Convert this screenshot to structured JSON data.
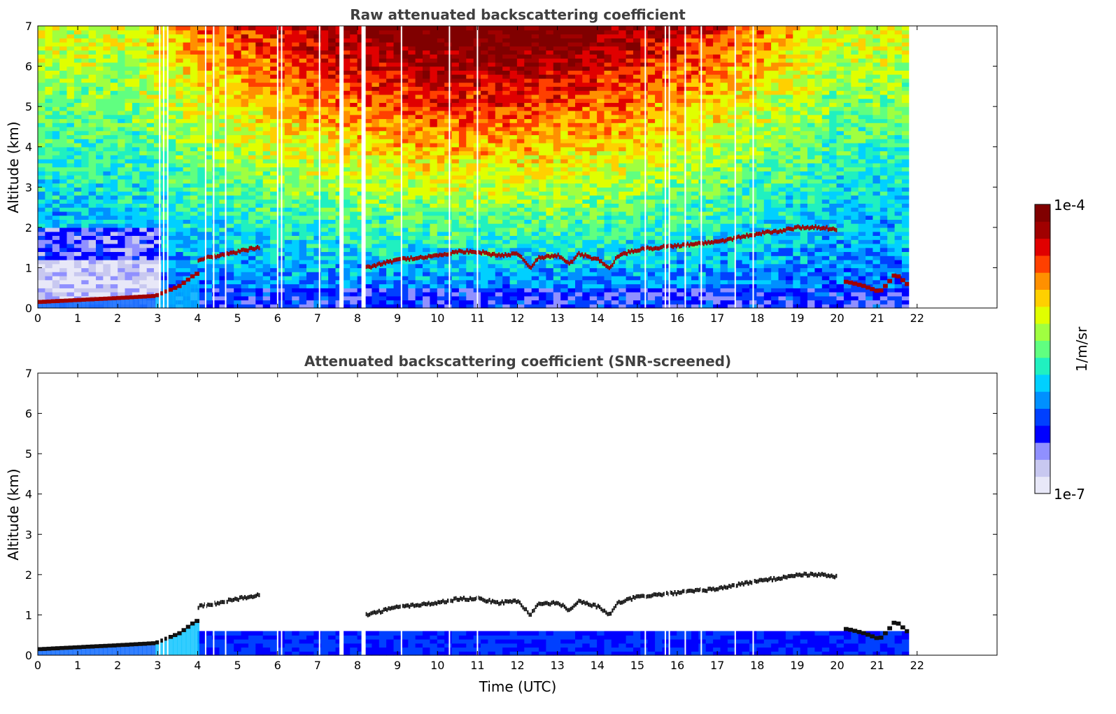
{
  "chart_data": [
    {
      "type": "heatmap",
      "title": "Raw attenuated backscattering coefficient",
      "xlabel": "",
      "ylabel": "Altitude (km)",
      "xlim": [
        0,
        24
      ],
      "ylim": [
        0,
        7
      ],
      "x_ticks": [
        "0",
        "1",
        "2",
        "3",
        "4",
        "5",
        "6",
        "7",
        "8",
        "9",
        "10",
        "11",
        "12",
        "13",
        "14",
        "15",
        "16",
        "17",
        "18",
        "19",
        "20",
        "21",
        "22"
      ],
      "y_ticks": [
        "0",
        "1",
        "2",
        "3",
        "4",
        "5",
        "6",
        "7"
      ],
      "data_time_range": [
        0,
        21.8
      ],
      "gap_times": [
        3.05,
        3.15,
        3.25,
        4.2,
        4.4,
        4.7,
        6.0,
        6.1,
        7.05,
        7.6,
        8.15,
        9.1,
        10.3,
        11.0,
        15.2,
        15.7,
        15.8,
        16.2,
        16.6,
        17.45,
        17.9
      ],
      "cloud_layer": {
        "time": [
          4.0,
          4.5,
          5.0,
          5.5,
          8.2,
          9.0,
          10.0,
          10.5,
          11.0,
          11.5,
          12.0,
          12.3,
          12.5,
          13.0,
          13.3,
          13.5,
          14.0,
          14.3,
          14.5,
          15.0,
          15.5,
          16.0,
          16.5,
          17.0,
          17.5,
          18.0,
          18.5,
          19.0,
          19.5,
          20.0
        ],
        "altitude_km": [
          1.2,
          1.3,
          1.4,
          1.5,
          1.0,
          1.2,
          1.3,
          1.4,
          1.4,
          1.3,
          1.35,
          1.0,
          1.25,
          1.3,
          1.1,
          1.35,
          1.2,
          1.0,
          1.3,
          1.45,
          1.5,
          1.55,
          1.6,
          1.65,
          1.75,
          1.85,
          1.9,
          2.0,
          2.0,
          1.95
        ]
      },
      "boundary_layer": {
        "time": [
          0,
          1,
          2,
          2.9,
          3.5,
          3.9,
          20.2,
          20.6,
          21.0,
          21.2,
          21.4,
          21.8
        ],
        "altitude_km": [
          0.2,
          0.25,
          0.3,
          0.35,
          0.6,
          0.9,
          0.7,
          0.6,
          0.45,
          0.65,
          0.9,
          0.55
        ]
      }
    },
    {
      "type": "heatmap",
      "title": "Attenuated backscattering coefficient (SNR-screened)",
      "xlabel": "Time (UTC)",
      "ylabel": "Altitude (km)",
      "xlim": [
        0,
        24
      ],
      "ylim": [
        0,
        7
      ],
      "x_ticks": [
        "0",
        "1",
        "2",
        "3",
        "4",
        "5",
        "6",
        "7",
        "8",
        "9",
        "10",
        "11",
        "12",
        "13",
        "14",
        "15",
        "16",
        "17",
        "18",
        "19",
        "20",
        "21",
        "22"
      ],
      "y_ticks": [
        "0",
        "1",
        "2",
        "3",
        "4",
        "5",
        "6",
        "7"
      ],
      "data_time_range": [
        0,
        21.8
      ],
      "screened_low_layer_top_km": 0.55
    }
  ],
  "colorbar": {
    "label": "1/m/sr",
    "max_label": "1e-4",
    "min_label": "1e-7",
    "colors": [
      "#e8e8f8",
      "#c8c8f0",
      "#9090ff",
      "#0000ff",
      "#0040ff",
      "#0090ff",
      "#00d0ff",
      "#20f0c0",
      "#60ff80",
      "#a0ff40",
      "#e0ff00",
      "#ffd000",
      "#ff9000",
      "#ff4000",
      "#e00000",
      "#a00000",
      "#800000"
    ]
  }
}
